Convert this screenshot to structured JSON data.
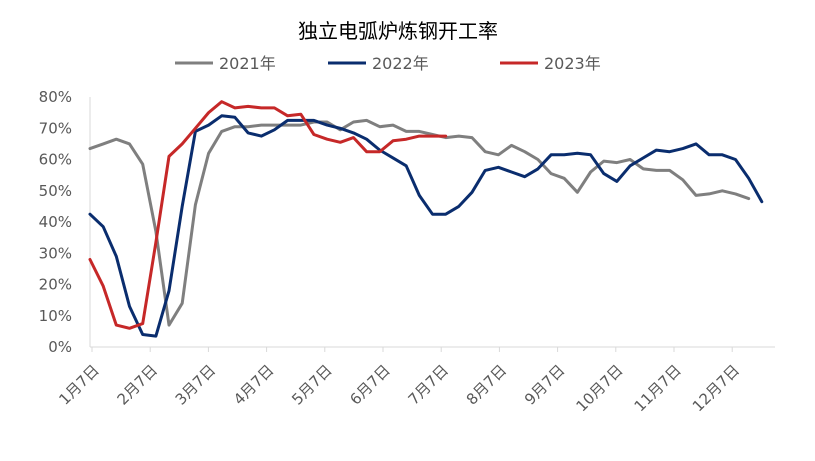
{
  "chart_data": {
    "type": "line",
    "title": "独立电弧炉炼钢开工率",
    "xlabel": "",
    "ylabel": "",
    "ylim": [
      0,
      80
    ],
    "y_ticks": [
      "0%",
      "10%",
      "20%",
      "30%",
      "40%",
      "50%",
      "60%",
      "70%",
      "80%"
    ],
    "x_ticks": [
      "1月7日",
      "2月7日",
      "3月7日",
      "4月7日",
      "5月7日",
      "6月7日",
      "7月7日",
      "8月7日",
      "9月7日",
      "10月7日",
      "11月7日",
      "12月7日"
    ],
    "grid": false,
    "legend_position": "top",
    "series": [
      {
        "name": "2021年",
        "color": "#7f7f7f",
        "values": [
          63.5,
          65,
          66.5,
          65,
          58.5,
          37,
          7,
          14,
          45.5,
          62,
          69,
          70.5,
          70.5,
          71,
          71,
          71,
          71,
          72,
          72,
          69.5,
          72,
          72.5,
          70.5,
          71,
          69,
          69,
          68,
          67,
          67.5,
          67,
          62.5,
          61.5,
          64.5,
          62.5,
          60,
          55.5,
          54,
          49.5,
          56,
          59.5,
          59,
          60,
          57,
          56.5,
          56.5,
          53.5,
          48.5,
          49,
          50,
          49,
          47.5
        ]
      },
      {
        "name": "2022年",
        "color": "#0a2d6e",
        "values": [
          42.5,
          38.5,
          29,
          13,
          4,
          3.5,
          18,
          45,
          69,
          71,
          74,
          73.5,
          68.5,
          67.5,
          69.5,
          72.5,
          72.5,
          72.5,
          71,
          70,
          68.5,
          66.5,
          63,
          60.5,
          58,
          48.5,
          42.5,
          42.5,
          45,
          49.5,
          56.5,
          57.5,
          56,
          54.5,
          57,
          61.5,
          61.5,
          62,
          61.5,
          55.5,
          53,
          58,
          60.5,
          63,
          62.5,
          63.5,
          65,
          61.5,
          61.5,
          60,
          54,
          46.5
        ]
      },
      {
        "name": "2023年",
        "color": "#c62828",
        "values": [
          28,
          19.5,
          7,
          6,
          7.5,
          33.5,
          61,
          65,
          70,
          75,
          78.5,
          76.5,
          77,
          76.5,
          76.5,
          74,
          74.5,
          68,
          66.5,
          65.5,
          67,
          62.5,
          62.5,
          66,
          66.5,
          67.5,
          67.5,
          67.5
        ]
      }
    ]
  }
}
